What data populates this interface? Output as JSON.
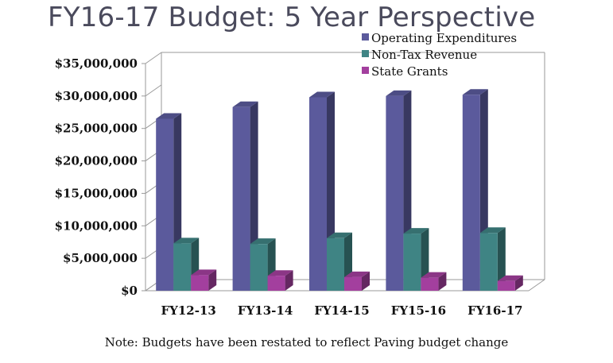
{
  "chart_data": {
    "type": "bar",
    "title": "FY16-17 Budget: 5 Year Perspective",
    "categories": [
      "FY12-13",
      "FY13-14",
      "FY14-15",
      "FY15-16",
      "FY16-17"
    ],
    "series": [
      {
        "name": "Operating Expenditures",
        "color": "#5b5a9c",
        "values": [
          26500000,
          28300000,
          29800000,
          30000000,
          30200000
        ]
      },
      {
        "name": "Non-Tax Revenue",
        "color": "#3f8484",
        "values": [
          7300000,
          7200000,
          8100000,
          8800000,
          8900000
        ]
      },
      {
        "name": "State Grants",
        "color": "#a33f9e",
        "values": [
          2400000,
          2300000,
          2100000,
          2000000,
          1500000
        ]
      }
    ],
    "yticks": [
      "$0",
      "$5,000,000",
      "$10,000,000",
      "$15,000,000",
      "$20,000,000",
      "$25,000,000",
      "$30,000,000",
      "$35,000,000"
    ],
    "ylim": [
      0,
      35000000
    ],
    "legend_position": "top-right",
    "grid": false
  },
  "note": "Note:  Budgets have been restated to reflect Paving budget change"
}
